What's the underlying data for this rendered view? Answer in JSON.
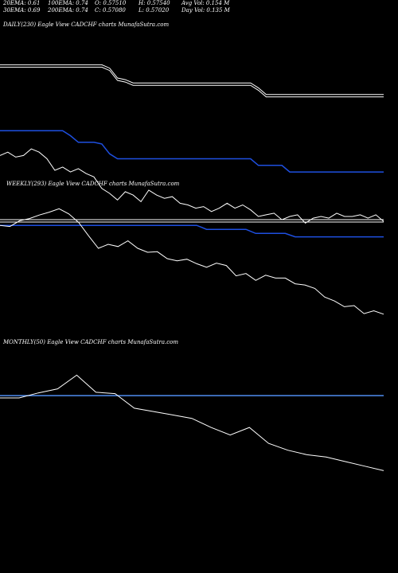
{
  "header": {
    "row1": [
      "20EMA: 0.61",
      "100EMA: 0.74",
      "O: 0.57510",
      "H: 0.57540",
      "Avg Vol: 0.154  M"
    ],
    "row2": [
      "30EMA: 0.69",
      "200EMA: 0.74",
      "C: 0.57080",
      "L: 0.57020",
      "Day Vol: 0.135  M"
    ]
  },
  "panels": {
    "daily_label": "DAILY(230) Eagle  View  CADCHF charts MunafaSutra.com",
    "weekly_label": "WEEKLY(293) Eagle  View CADCHF charts MunafaSutra.com",
    "monthly_label": "MONTHLY(50) Eagle  View  CADCHF charts MunafaSutra.com"
  },
  "colors": {
    "background": "#000000",
    "price": "#ffffff",
    "ema": "#1e4fe0",
    "ema_light": "#4f8df0"
  },
  "chart_data": [
    {
      "panel": "daily",
      "type": "line",
      "series": [
        {
          "values": [
            0.6,
            0.6,
            0.6,
            0.6,
            0.6,
            0.6,
            0.6,
            0.6,
            0.6,
            0.6,
            0.6,
            0.6,
            0.6,
            0.6,
            0.598,
            0.592,
            0.591,
            0.589,
            0.589,
            0.589,
            0.589,
            0.589,
            0.589,
            0.589,
            0.589,
            0.589,
            0.589,
            0.589,
            0.589,
            0.589,
            0.589,
            0.589,
            0.589,
            0.586,
            0.582,
            0.582,
            0.582,
            0.582,
            0.582,
            0.582,
            0.582,
            0.582,
            0.582,
            0.582,
            0.582,
            0.582,
            0.582,
            0.582,
            0.582,
            0.582
          ]
        },
        {
          "values": [
            0.56,
            0.56,
            0.56,
            0.56,
            0.56,
            0.56,
            0.56,
            0.56,
            0.56,
            0.557,
            0.553,
            0.553,
            0.553,
            0.552,
            0.546,
            0.543,
            0.543,
            0.543,
            0.543,
            0.543,
            0.543,
            0.543,
            0.543,
            0.543,
            0.543,
            0.543,
            0.543,
            0.543,
            0.543,
            0.543,
            0.543,
            0.543,
            0.543,
            0.539,
            0.539,
            0.539,
            0.539,
            0.535,
            0.535,
            0.535,
            0.535,
            0.535,
            0.535,
            0.535,
            0.535,
            0.535,
            0.535,
            0.535,
            0.535,
            0.535
          ]
        },
        {
          "values": [
            0.545,
            0.547,
            0.544,
            0.545,
            0.549,
            0.547,
            0.543,
            0.536,
            0.538,
            0.535,
            0.537,
            0.534,
            0.532,
            0.525,
            0.522,
            0.518,
            0.523,
            0.521,
            0.517,
            0.524,
            0.521,
            0.519,
            0.52,
            0.516,
            0.515,
            0.513,
            0.514,
            0.511,
            0.513,
            0.516,
            0.513,
            0.515,
            0.512,
            0.508,
            0.509,
            0.51,
            0.506,
            0.508,
            0.509,
            0.504,
            0.507,
            0.508,
            0.507,
            0.51,
            0.508,
            0.508,
            0.509,
            0.507,
            0.509,
            0.505
          ]
        }
      ]
    },
    {
      "panel": "weekly",
      "type": "line",
      "series": [
        {
          "values": [
            0.65,
            0.65,
            0.65,
            0.65,
            0.65,
            0.65,
            0.65,
            0.65,
            0.65,
            0.65,
            0.65,
            0.65,
            0.65,
            0.65,
            0.65,
            0.65,
            0.65,
            0.65,
            0.65,
            0.65,
            0.65,
            0.65,
            0.65,
            0.65,
            0.65,
            0.65,
            0.65,
            0.65,
            0.65,
            0.65,
            0.65,
            0.65,
            0.65,
            0.65,
            0.65,
            0.65,
            0.65,
            0.65,
            0.65,
            0.65
          ]
        },
        {
          "values": [
            0.64,
            0.64,
            0.64,
            0.64,
            0.64,
            0.64,
            0.64,
            0.64,
            0.64,
            0.64,
            0.64,
            0.64,
            0.64,
            0.64,
            0.64,
            0.64,
            0.64,
            0.64,
            0.64,
            0.64,
            0.64,
            0.633,
            0.633,
            0.633,
            0.633,
            0.633,
            0.626,
            0.626,
            0.626,
            0.626,
            0.62,
            0.62,
            0.62,
            0.62,
            0.62,
            0.62,
            0.62,
            0.62,
            0.62,
            0.62
          ]
        },
        {
          "values": [
            0.64,
            0.638,
            0.648,
            0.652,
            0.658,
            0.663,
            0.669,
            0.66,
            0.645,
            0.622,
            0.6,
            0.607,
            0.603,
            0.613,
            0.6,
            0.593,
            0.594,
            0.582,
            0.578,
            0.581,
            0.573,
            0.567,
            0.574,
            0.57,
            0.552,
            0.556,
            0.544,
            0.553,
            0.548,
            0.548,
            0.538,
            0.536,
            0.53,
            0.515,
            0.508,
            0.498,
            0.5,
            0.486,
            0.491,
            0.485
          ]
        }
      ]
    },
    {
      "panel": "monthly",
      "type": "line",
      "series": [
        {
          "values": [
            1.0,
            1.0,
            1.0,
            1.0,
            1.0,
            1.0,
            1.0,
            1.0,
            1.0,
            1.0,
            1.0,
            1.0,
            1.0,
            1.0,
            1.0,
            1.0,
            1.0,
            1.0,
            1.0,
            1.0,
            1.0
          ]
        },
        {
          "values": [
            0.99,
            0.99,
            1.012,
            1.03,
            1.09,
            1.015,
            1.009,
            0.945,
            0.93,
            0.915,
            0.9,
            0.86,
            0.827,
            0.86,
            0.79,
            0.76,
            0.74,
            0.73,
            0.71,
            0.69,
            0.67
          ]
        }
      ]
    }
  ]
}
